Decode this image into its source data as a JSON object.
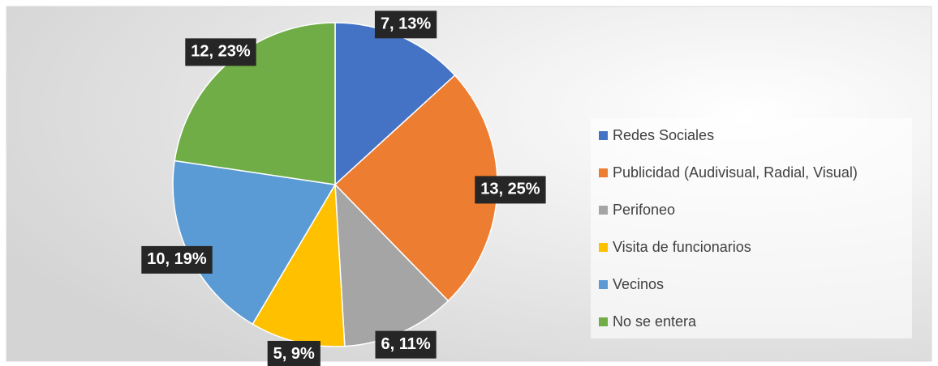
{
  "chart_data": {
    "type": "pie",
    "categories": [
      "Redes Sociales",
      "Publicidad (Audivisual, Radial, Visual)",
      "Perifoneo",
      "Visita de funcionarios",
      "Vecinos",
      "No se entera"
    ],
    "values": [
      7,
      13,
      6,
      5,
      10,
      12
    ],
    "value_labels": [
      "7, 13%",
      "13, 25%",
      "6, 11%",
      "5, 9%",
      "10, 19%",
      "12, 23%"
    ],
    "colors": [
      "#4472c4",
      "#ed7d31",
      "#a5a5a5",
      "#ffc000",
      "#5b9bd5",
      "#70ad47"
    ],
    "legend": "right"
  }
}
